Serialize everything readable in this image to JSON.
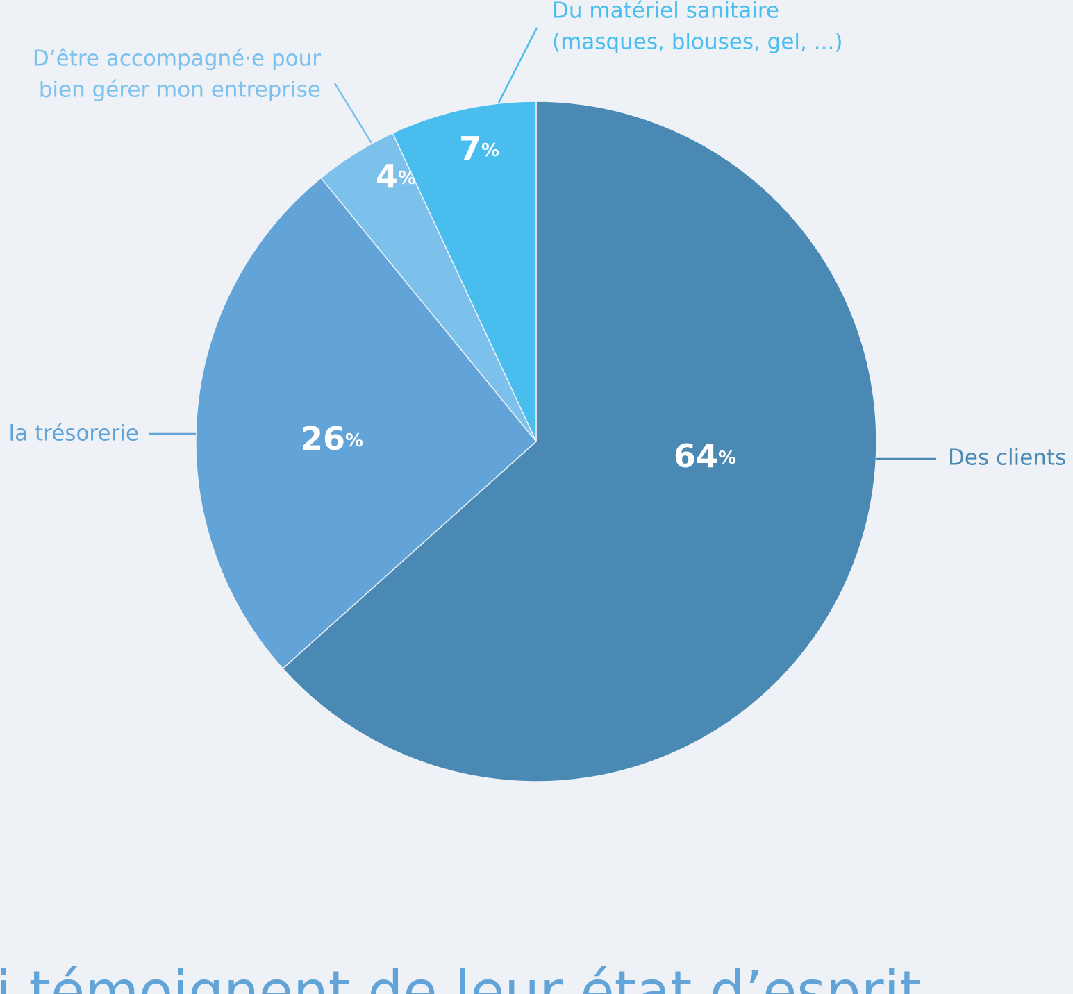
{
  "chart_data": {
    "type": "pie",
    "categories": [
      [
        "Des clients"
      ],
      [
        "la trésorerie"
      ],
      [
        "D’être accompagné·e pour",
        "bien gérer mon entreprise"
      ],
      [
        "Du matériel sanitaire",
        "(masques, blouses, gel, ...)"
      ]
    ],
    "values": [
      64,
      26,
      4,
      7
    ],
    "value_labels": [
      "64%",
      "26%",
      "4%",
      "7%"
    ],
    "colors": [
      "#4a89b4",
      "#62a4d7",
      "#7cc0ec",
      "#48bdee"
    ],
    "footer": "i témoignent de leur état d’esprit"
  }
}
